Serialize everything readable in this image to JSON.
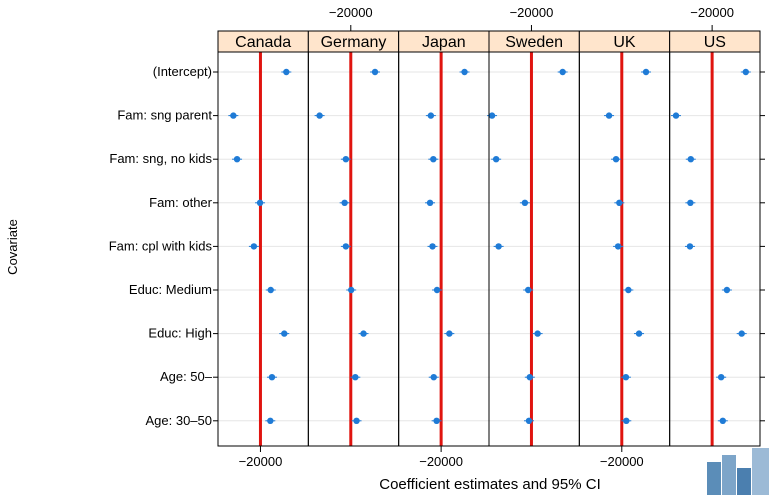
{
  "chart_data": {
    "type": "scatter",
    "xlabel": "Coefficient estimates and 95% CI",
    "ylabel": "Covariate",
    "panels": [
      "Canada",
      "Germany",
      "Japan",
      "Sweden",
      "UK",
      "US"
    ],
    "covariates": [
      "(Intercept)",
      "Fam: sng parent",
      "Fam: sng, no kids",
      "Fam: other",
      "Fam: cpl with kids",
      "Educ: Medium",
      "Educ: High",
      "Age: 50–",
      "Age: 30–50"
    ],
    "xlim": [
      -22000,
      0
    ],
    "reference_x": -20000,
    "ticks": [
      -20000
    ],
    "tick_labels": [
      "−20000"
    ],
    "series": [
      {
        "name": "Canada",
        "values": [
          -13700,
          -26600,
          -25700,
          -20100,
          -21600,
          -17500,
          -14200,
          -17200,
          -17600
        ]
      },
      {
        "name": "Germany",
        "values": [
          -14100,
          -27600,
          -21200,
          -21500,
          -21200,
          -19900,
          -16900,
          -18900,
          -18600
        ]
      },
      {
        "name": "Japan",
        "values": [
          -14300,
          -22500,
          -21900,
          -22700,
          -22100,
          -21000,
          -18000,
          -21800,
          -21100
        ]
      },
      {
        "name": "Sweden",
        "values": [
          -12400,
          -29600,
          -28600,
          -21600,
          -28000,
          -20800,
          -18500,
          -20400,
          -20600
        ]
      },
      {
        "name": "UK",
        "values": [
          -14100,
          -23100,
          -21400,
          -20600,
          -20900,
          -18400,
          -15800,
          -19000,
          -18900
        ]
      },
      {
        "name": "US",
        "values": [
          -11800,
          -28800,
          -25200,
          -25300,
          -25400,
          -16400,
          -12800,
          -17800,
          -17400
        ]
      }
    ],
    "grid": true,
    "legend": "none"
  }
}
